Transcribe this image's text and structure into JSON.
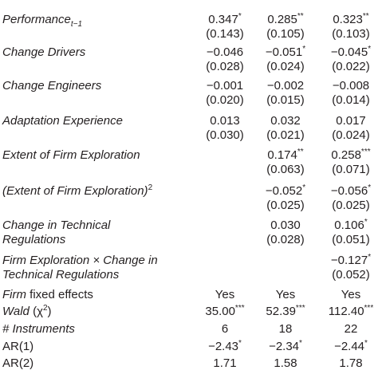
{
  "table": {
    "rows": [
      {
        "label": [
          [
            {
              "text": "Performance",
              "italic": true
            },
            {
              "text": "t−1",
              "italic": true,
              "sub": true
            }
          ]
        ],
        "coef": [
          {
            "value": "0.347",
            "stars": "*"
          },
          {
            "value": "0.285",
            "stars": "**"
          },
          {
            "value": "0.323",
            "stars": "**"
          }
        ],
        "se": [
          "(0.143)",
          "(0.105)",
          "(0.103)"
        ]
      },
      {
        "label": [
          [
            {
              "text": "Change Drivers",
              "italic": true
            }
          ]
        ],
        "coef": [
          {
            "value": "−0.046"
          },
          {
            "value": "−0.051",
            "stars": "*"
          },
          {
            "value": "−0.045",
            "stars": "*"
          }
        ],
        "se": [
          "(0.028)",
          "(0.024)",
          "(0.022)"
        ]
      },
      {
        "label": [
          [
            {
              "text": "Change Engineers",
              "italic": true
            }
          ]
        ],
        "coef": [
          {
            "value": "−0.001"
          },
          {
            "value": "−0.002"
          },
          {
            "value": "−0.008"
          }
        ],
        "se": [
          "(0.020)",
          "(0.015)",
          "(0.014)"
        ]
      },
      {
        "label": [
          [
            {
              "text": "Adaptation Experience",
              "italic": true
            }
          ]
        ],
        "coef": [
          {
            "value": "0.013"
          },
          {
            "value": "0.032"
          },
          {
            "value": "0.017"
          }
        ],
        "se": [
          "(0.030)",
          "(0.021)",
          "(0.024)"
        ]
      },
      {
        "label": [
          [
            {
              "text": "Extent of Firm Exploration",
              "italic": true
            }
          ]
        ],
        "coef": [
          null,
          {
            "value": "0.174",
            "stars": "**"
          },
          {
            "value": "0.258",
            "stars": "***"
          }
        ],
        "se": [
          null,
          "(0.063)",
          "(0.071)"
        ]
      },
      {
        "label": [
          [
            {
              "text": "(Extent of Firm Exploration)",
              "italic": true
            },
            {
              "text": "2",
              "sup": true
            }
          ]
        ],
        "coef": [
          null,
          {
            "value": "−0.052",
            "stars": "*"
          },
          {
            "value": "−0.056",
            "stars": "*"
          }
        ],
        "se": [
          null,
          "(0.025)",
          "(0.025)"
        ]
      },
      {
        "label": [
          [
            {
              "text": "Change in Technical",
              "italic": true
            }
          ],
          [
            {
              "text": "Regulations",
              "italic": true
            }
          ]
        ],
        "coef": [
          null,
          {
            "value": "0.030"
          },
          {
            "value": "0.106",
            "stars": "*"
          }
        ],
        "se": [
          null,
          "(0.028)",
          "(0.051)"
        ]
      },
      {
        "label": [
          [
            {
              "text": "Firm Exploration × Change in",
              "italic": true
            }
          ],
          [
            {
              "text": "Technical Regulations",
              "italic": true
            }
          ]
        ],
        "coef": [
          null,
          null,
          {
            "value": "−0.127",
            "stars": "*"
          }
        ],
        "se": [
          null,
          null,
          "(0.052)"
        ]
      }
    ],
    "stats": [
      {
        "label": [
          {
            "text": "Firm",
            "italic": true
          },
          {
            "text": " fixed effects"
          }
        ],
        "values": [
          {
            "value": "Yes"
          },
          {
            "value": "Yes"
          },
          {
            "value": "Yes"
          }
        ]
      },
      {
        "label": [
          {
            "text": "Wald",
            "italic": true
          },
          {
            "text": " (χ"
          },
          {
            "text": "2",
            "sup": true
          },
          {
            "text": ")"
          }
        ],
        "values": [
          {
            "value": "35.00",
            "stars": "***"
          },
          {
            "value": "52.39",
            "stars": "***"
          },
          {
            "value": "112.40",
            "stars": "***"
          }
        ]
      },
      {
        "label": [
          {
            "text": "# Instruments",
            "italic": true
          }
        ],
        "values": [
          {
            "value": "6"
          },
          {
            "value": "18"
          },
          {
            "value": "22"
          }
        ]
      },
      {
        "label": [
          {
            "text": "AR(1)"
          }
        ],
        "values": [
          {
            "value": "−2.43",
            "stars": "*"
          },
          {
            "value": "−2.34",
            "stars": "*"
          },
          {
            "value": "−2.44",
            "stars": "*"
          }
        ]
      },
      {
        "label": [
          {
            "text": "AR(2)"
          }
        ],
        "values": [
          {
            "value": "1.71"
          },
          {
            "value": "1.58"
          },
          {
            "value": "1.78"
          }
        ]
      }
    ]
  }
}
